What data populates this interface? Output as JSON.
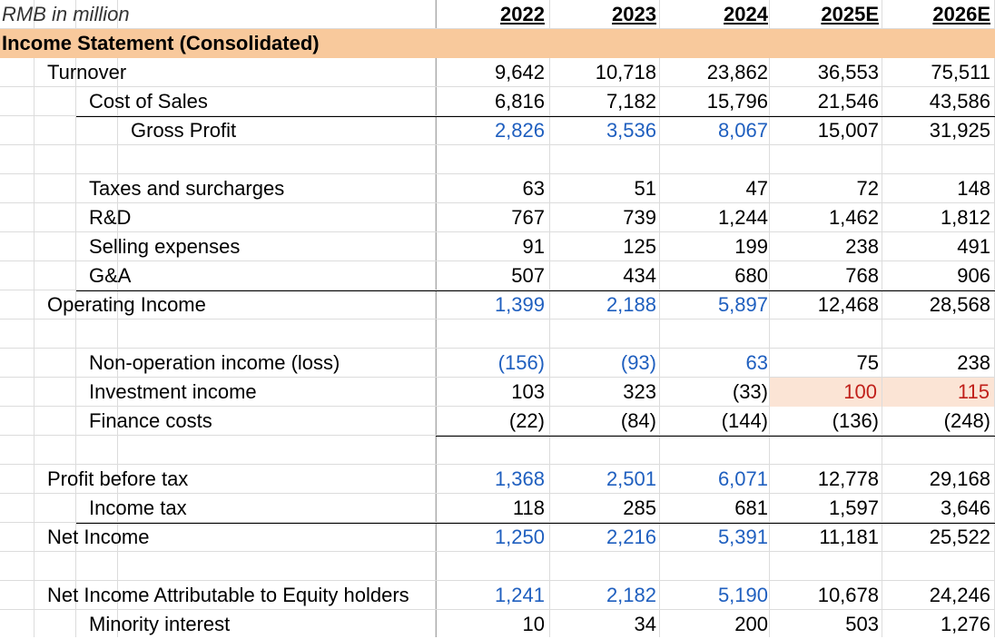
{
  "unit_label": "RMB in million",
  "years": [
    "2022",
    "2023",
    "2024",
    "2025E",
    "2026E"
  ],
  "section_title": "Income Statement (Consolidated)",
  "rows": [
    {
      "label": "Turnover",
      "indent": 1,
      "values": [
        "9,642",
        "10,718",
        "23,862",
        "36,553",
        "75,511"
      ]
    },
    {
      "label": "Cost of Sales",
      "indent": 2,
      "values": [
        "6,816",
        "7,182",
        "15,796",
        "21,546",
        "43,586"
      ]
    },
    {
      "label": "Gross Profit",
      "indent": 3,
      "values": [
        "2,826",
        "3,536",
        "8,067",
        "15,007",
        "31,925"
      ]
    },
    {
      "label": "",
      "indent": 0,
      "values": [
        "",
        "",
        "",
        "",
        ""
      ]
    },
    {
      "label": "Taxes and surcharges",
      "indent": 2,
      "values": [
        "63",
        "51",
        "47",
        "72",
        "148"
      ]
    },
    {
      "label": "R&D",
      "indent": 2,
      "values": [
        "767",
        "739",
        "1,244",
        "1,462",
        "1,812"
      ]
    },
    {
      "label": "Selling expenses",
      "indent": 2,
      "values": [
        "91",
        "125",
        "199",
        "238",
        "491"
      ]
    },
    {
      "label": "G&A",
      "indent": 2,
      "values": [
        "507",
        "434",
        "680",
        "768",
        "906"
      ]
    },
    {
      "label": "Operating Income",
      "indent": 1,
      "values": [
        "1,399",
        "2,188",
        "5,897",
        "12,468",
        "28,568"
      ]
    },
    {
      "label": "",
      "indent": 0,
      "values": [
        "",
        "",
        "",
        "",
        ""
      ]
    },
    {
      "label": "Non-operation income (loss)",
      "indent": 2,
      "values": [
        "(156)",
        "(93)",
        "63",
        "75",
        "238"
      ]
    },
    {
      "label": "Investment income",
      "indent": 2,
      "values": [
        "103",
        "323",
        "(33)",
        "100",
        "115"
      ]
    },
    {
      "label": "Finance costs",
      "indent": 2,
      "values": [
        "(22)",
        "(84)",
        "(144)",
        "(136)",
        "(248)"
      ]
    },
    {
      "label": "",
      "indent": 0,
      "values": [
        "",
        "",
        "",
        "",
        ""
      ]
    },
    {
      "label": "Profit before tax",
      "indent": 1,
      "values": [
        "1,368",
        "2,501",
        "6,071",
        "12,778",
        "29,168"
      ]
    },
    {
      "label": "Income tax",
      "indent": 2,
      "values": [
        "118",
        "285",
        "681",
        "1,597",
        "3,646"
      ]
    },
    {
      "label": "Net Income",
      "indent": 1,
      "values": [
        "1,250",
        "2,216",
        "5,391",
        "11,181",
        "25,522"
      ]
    },
    {
      "label": "",
      "indent": 0,
      "values": [
        "",
        "",
        "",
        "",
        ""
      ]
    },
    {
      "label": "Net Income Attributable to Equity holders",
      "indent": 1,
      "values": [
        "1,241",
        "2,182",
        "5,190",
        "10,678",
        "24,246"
      ]
    },
    {
      "label": "Minority interest",
      "indent": 2,
      "values": [
        "10",
        "34",
        "200",
        "503",
        "1,276"
      ]
    }
  ],
  "colors": {
    "header_fill": "#f8c99c",
    "historical_subtotal_text": "#1f5fbf",
    "input_highlight_fill": "#fbe4d5",
    "input_highlight_text": "#c0201a"
  }
}
